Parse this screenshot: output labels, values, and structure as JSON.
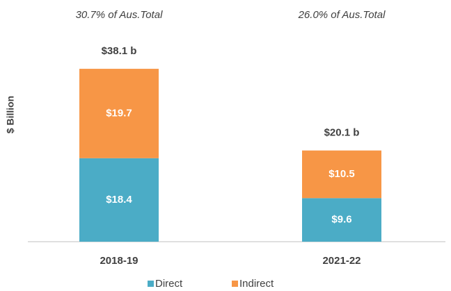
{
  "chart_data": {
    "type": "stacked_bar",
    "annotations": [
      "30.7% of Aus.Total",
      "26.0% of Aus.Total"
    ],
    "y_label": "$ Billion",
    "categories": [
      "2018-19",
      "2021-22"
    ],
    "series": [
      {
        "name": "Direct",
        "color": "#4bacc6",
        "values": [
          18.4,
          9.6
        ],
        "value_labels": [
          "$18.4",
          "$9.6"
        ]
      },
      {
        "name": "Indirect",
        "color": "#f79646",
        "values": [
          19.7,
          10.5
        ],
        "value_labels": [
          "$19.7",
          "$10.5"
        ]
      }
    ],
    "totals": {
      "values": [
        38.1,
        20.1
      ],
      "value_labels": [
        "$38.1 b",
        "$20.1 b"
      ]
    },
    "ylim": [
      0,
      45
    ]
  }
}
